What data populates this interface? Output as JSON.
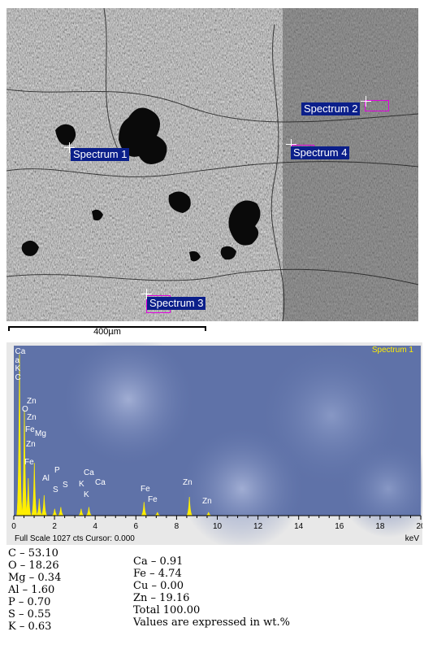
{
  "sem": {
    "labels": [
      {
        "id": "s1",
        "text": "Spectrum 1"
      },
      {
        "id": "s2",
        "text": "Spectrum 2"
      },
      {
        "id": "s3",
        "text": "Spectrum 3"
      },
      {
        "id": "s4",
        "text": "Spectrum 4"
      }
    ],
    "scale_bar_label": "400µm"
  },
  "chart_data": {
    "type": "line",
    "title": "Spectrum 1",
    "xlabel": "keV",
    "xlim": [
      0,
      20
    ],
    "x_ticks": [
      0,
      2,
      4,
      6,
      8,
      10,
      12,
      14,
      16,
      18,
      20
    ],
    "footer": "Full Scale 1027 cts Cursor: 0.000",
    "peaks": [
      {
        "label": "C",
        "kev": 0.28,
        "height": 0.95
      },
      {
        "label": "O",
        "kev": 0.52,
        "height": 0.62
      },
      {
        "label": "Fe",
        "kev": 0.71,
        "height": 0.22
      },
      {
        "label": "Zn",
        "kev": 1.01,
        "height": 0.31
      },
      {
        "label": "Mg",
        "kev": 1.25,
        "height": 0.1
      },
      {
        "label": "Al",
        "kev": 1.49,
        "height": 0.12
      },
      {
        "label": "P",
        "kev": 2.01,
        "height": 0.04
      },
      {
        "label": "S",
        "kev": 2.31,
        "height": 0.05
      },
      {
        "label": "K",
        "kev": 3.31,
        "height": 0.04
      },
      {
        "label": "Ca",
        "kev": 3.69,
        "height": 0.05
      },
      {
        "label": "Fe",
        "kev": 6.4,
        "height": 0.08
      },
      {
        "label": "Fe",
        "kev": 7.06,
        "height": 0.02
      },
      {
        "label": "Zn",
        "kev": 8.63,
        "height": 0.11
      },
      {
        "label": "Zn",
        "kev": 9.57,
        "height": 0.02
      }
    ],
    "annotations": [
      "Ca",
      "a",
      "K",
      "C",
      "Zn",
      "O",
      "Zn",
      "Fe",
      "Mg",
      "Zn",
      "Fe",
      "Al",
      "P",
      "S",
      "S",
      "K",
      "Ca",
      "Ca",
      "K",
      "Fe",
      "Fe",
      "Zn",
      "Zn"
    ]
  },
  "composition": {
    "left": [
      "C – 53.10",
      "O – 18.26",
      "Mg – 0.34",
      "Al – 1.60",
      "P – 0.70",
      "S – 0.55",
      "K – 0.63"
    ],
    "right": [
      "Ca – 0.91",
      "Fe – 4.74",
      "Cu – 0.00",
      "Zn – 19.16",
      "Total 100.00",
      "Values are expressed in wt.%"
    ]
  },
  "colors": {
    "label_bg": "#0b1f8a",
    "marker": "#e000e0",
    "peak": "#ffee00",
    "plot_bg": "#5f72a8"
  }
}
